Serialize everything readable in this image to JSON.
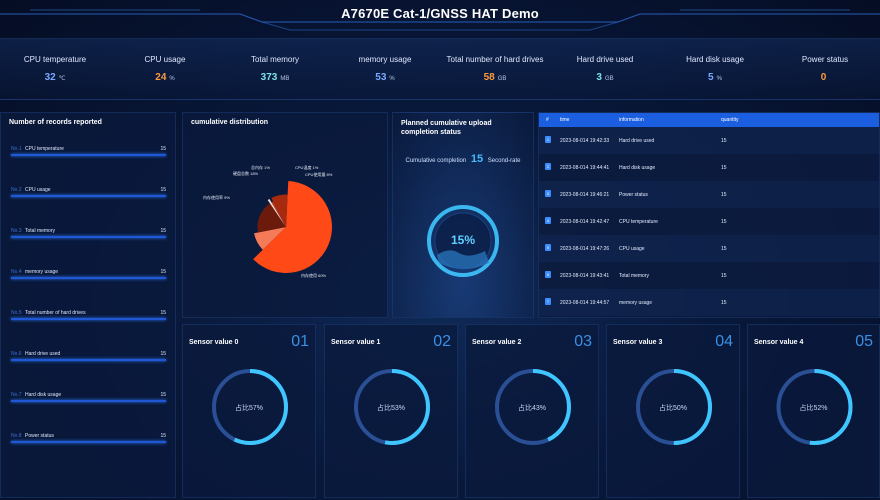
{
  "header": {
    "title": "A7670E Cat-1/GNSS HAT Demo"
  },
  "stats": [
    {
      "label": "CPU temperature",
      "value": "32",
      "unit": "℃",
      "color": "#79a8ff"
    },
    {
      "label": "CPU usage",
      "value": "24",
      "unit": "%",
      "color": "#ff9b3d"
    },
    {
      "label": "Total memory",
      "value": "373",
      "unit": "MB",
      "color": "#7de0e6"
    },
    {
      "label": "memory usage",
      "value": "53",
      "unit": "%",
      "color": "#79a8ff"
    },
    {
      "label": "Total number of hard drives",
      "value": "58",
      "unit": "GB",
      "color": "#ff9b3d"
    },
    {
      "label": "Hard drive used",
      "value": "3",
      "unit": "GB",
      "color": "#7de0e6"
    },
    {
      "label": "Hard disk usage",
      "value": "5",
      "unit": "%",
      "color": "#79a8ff"
    },
    {
      "label": "Power status",
      "value": "0",
      "unit": "",
      "color": "#ff9b3d"
    }
  ],
  "records": {
    "title": "Number of records reported",
    "rows": [
      {
        "no": "No.1",
        "name": "CPU temperature",
        "count": "15"
      },
      {
        "no": "No.2",
        "name": "CPU usage",
        "count": "15"
      },
      {
        "no": "No.3",
        "name": "Total memory",
        "count": "15"
      },
      {
        "no": "No.4",
        "name": "memory usage",
        "count": "15"
      },
      {
        "no": "No.5",
        "name": "Total number of hard drives",
        "count": "15"
      },
      {
        "no": "No.6",
        "name": "Hard drive used",
        "count": "15"
      },
      {
        "no": "No.7",
        "name": "Hard disk usage",
        "count": "15"
      },
      {
        "no": "No.8",
        "name": "Power status",
        "count": "15"
      }
    ]
  },
  "distribution": {
    "title": "cumulative distribution",
    "labels": [
      "CPU温度 1%",
      "CPU使用量 8%",
      "内存使用 60%",
      "内存使用率 9%",
      "硬盘总数 18%",
      "总内存 1%"
    ]
  },
  "chart_data": {
    "type": "pie",
    "title": "cumulative distribution",
    "slices": [
      {
        "label": "内存使用",
        "value": 60,
        "color": "#ff4a17"
      },
      {
        "label": "内存使用率",
        "value": 9,
        "color": "#f47a58"
      },
      {
        "label": "硬盘总数",
        "value": 18,
        "color": "#6b1a0c"
      },
      {
        "label": "总内存",
        "value": 1,
        "color": "#f2d7cf"
      },
      {
        "label": "CPU温度",
        "value": 1,
        "color": "#c13916"
      },
      {
        "label": "CPU使用量",
        "value": 8,
        "color": "#a52a10"
      }
    ]
  },
  "completion": {
    "title": "Planned cumulative upload completion status",
    "label": "Cumulative completion",
    "count": "15",
    "suffix": "Second-rate",
    "percent_text": "15%",
    "percent": 15
  },
  "table": {
    "headers": [
      "#",
      "time",
      "information",
      "quantity"
    ],
    "rows": [
      {
        "idx": "1",
        "time": "2023-08-014 19:42:33",
        "info": "Hard drive used",
        "qty": "15"
      },
      {
        "idx": "2",
        "time": "2023-08-014 19:44:41",
        "info": "Hard disk usage",
        "qty": "15"
      },
      {
        "idx": "3",
        "time": "2023-08-014 19:46:21",
        "info": "Power status",
        "qty": "15"
      },
      {
        "idx": "4",
        "time": "2023-08-014 19:42:47",
        "info": "CPU temperature",
        "qty": "15"
      },
      {
        "idx": "5",
        "time": "2023-08-014 19:47:26",
        "info": "CPU usage",
        "qty": "15"
      },
      {
        "idx": "6",
        "time": "2023-08-014 19:43:41",
        "info": "Total memory",
        "qty": "15"
      },
      {
        "idx": "7",
        "time": "2023-08-014 19:44:57",
        "info": "memory usage",
        "qty": "15"
      }
    ]
  },
  "sensors": [
    {
      "title": "Sensor value 0",
      "num": "01",
      "center": "占比57%",
      "percent": 57
    },
    {
      "title": "Sensor value 1",
      "num": "02",
      "center": "占比53%",
      "percent": 53
    },
    {
      "title": "Sensor value 2",
      "num": "03",
      "center": "占比43%",
      "percent": 43
    },
    {
      "title": "Sensor value 3",
      "num": "04",
      "center": "占比50%",
      "percent": 50
    },
    {
      "title": "Sensor value 4",
      "num": "05",
      "center": "占比52%",
      "percent": 52
    }
  ]
}
